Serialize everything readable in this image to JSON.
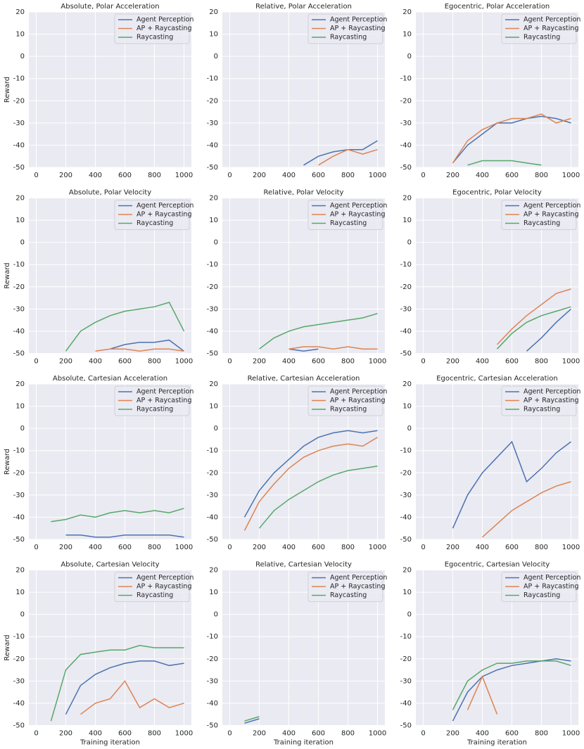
{
  "chart_data": [
    {
      "type": "line",
      "title": "Absolute, Polar Acceleration",
      "ylabel": "Reward",
      "x": [
        0,
        100,
        200,
        300,
        400,
        500,
        600,
        700,
        800,
        900,
        1000
      ],
      "series": [
        {
          "name": "Agent Perception",
          "color": "#4c72b0",
          "values": [
            null,
            null,
            null,
            null,
            null,
            null,
            null,
            null,
            null,
            null,
            null
          ]
        },
        {
          "name": "AP + Raycasting",
          "color": "#dd8452",
          "values": [
            null,
            null,
            null,
            null,
            null,
            null,
            null,
            null,
            null,
            null,
            null
          ]
        },
        {
          "name": "Raycasting",
          "color": "#55a868",
          "values": [
            null,
            null,
            null,
            null,
            null,
            null,
            null,
            null,
            null,
            null,
            null
          ]
        }
      ],
      "xlim": [
        -50,
        1050
      ],
      "ylim": [
        -50,
        20
      ],
      "xticks": [
        0,
        200,
        400,
        600,
        800,
        1000
      ],
      "yticks": [
        -50,
        -40,
        -30,
        -20,
        -10,
        0,
        10,
        20
      ],
      "grid": true,
      "legend": "upper right"
    },
    {
      "type": "line",
      "title": "Relative, Polar Acceleration",
      "x": [
        0,
        100,
        200,
        300,
        400,
        500,
        600,
        700,
        800,
        900,
        1000
      ],
      "series": [
        {
          "name": "Agent Perception",
          "color": "#4c72b0",
          "values": [
            null,
            null,
            null,
            null,
            null,
            -49,
            -45,
            -43,
            -42,
            -42,
            -38
          ]
        },
        {
          "name": "AP + Raycasting",
          "color": "#dd8452",
          "values": [
            null,
            null,
            null,
            null,
            null,
            null,
            -49,
            -45,
            -42,
            -44,
            -42
          ]
        },
        {
          "name": "Raycasting",
          "color": "#55a868",
          "values": [
            null,
            null,
            null,
            null,
            null,
            null,
            null,
            null,
            null,
            null,
            null
          ]
        }
      ],
      "xlim": [
        -50,
        1050
      ],
      "ylim": [
        -50,
        20
      ],
      "xticks": [
        0,
        200,
        400,
        600,
        800,
        1000
      ],
      "yticks": [
        -50,
        -40,
        -30,
        -20,
        -10,
        0,
        10,
        20
      ],
      "grid": true,
      "legend": "upper right"
    },
    {
      "type": "line",
      "title": "Egocentric, Polar Acceleration",
      "x": [
        0,
        100,
        200,
        300,
        400,
        500,
        600,
        700,
        800,
        900,
        1000
      ],
      "series": [
        {
          "name": "Agent Perception",
          "color": "#4c72b0",
          "values": [
            null,
            null,
            -48,
            -40,
            -35,
            -30,
            -30,
            -28,
            -27,
            -28,
            -30
          ]
        },
        {
          "name": "AP + Raycasting",
          "color": "#dd8452",
          "values": [
            null,
            null,
            -48,
            -38,
            -33,
            -30,
            -28,
            -28,
            -26,
            -30,
            -28
          ]
        },
        {
          "name": "Raycasting",
          "color": "#55a868",
          "values": [
            null,
            null,
            null,
            -49,
            -47,
            -47,
            -47,
            -48,
            -49,
            null,
            null
          ]
        }
      ],
      "xlim": [
        -50,
        1050
      ],
      "ylim": [
        -50,
        20
      ],
      "xticks": [
        0,
        200,
        400,
        600,
        800,
        1000
      ],
      "yticks": [
        -50,
        -40,
        -30,
        -20,
        -10,
        0,
        10,
        20
      ],
      "grid": true,
      "legend": "upper right"
    },
    {
      "type": "line",
      "title": "Absolute, Polar Velocity",
      "ylabel": "Reward",
      "x": [
        0,
        100,
        200,
        300,
        400,
        500,
        600,
        700,
        800,
        900,
        1000
      ],
      "series": [
        {
          "name": "Agent Perception",
          "color": "#4c72b0",
          "values": [
            null,
            null,
            null,
            null,
            null,
            -48,
            -46,
            -45,
            -45,
            -44,
            -49
          ]
        },
        {
          "name": "AP + Raycasting",
          "color": "#dd8452",
          "values": [
            null,
            null,
            null,
            null,
            -49,
            -48,
            -48,
            -49,
            -48,
            -48,
            -49
          ]
        },
        {
          "name": "Raycasting",
          "color": "#55a868",
          "values": [
            null,
            null,
            -49,
            -40,
            -36,
            -33,
            -31,
            -30,
            -29,
            -27,
            -40
          ]
        }
      ],
      "xlim": [
        -50,
        1050
      ],
      "ylim": [
        -50,
        20
      ],
      "xticks": [
        0,
        200,
        400,
        600,
        800,
        1000
      ],
      "yticks": [
        -50,
        -40,
        -30,
        -20,
        -10,
        0,
        10,
        20
      ],
      "grid": true,
      "legend": "upper right"
    },
    {
      "type": "line",
      "title": "Relative, Polar Velocity",
      "x": [
        0,
        100,
        200,
        300,
        400,
        500,
        600,
        700,
        800,
        900,
        1000
      ],
      "series": [
        {
          "name": "Agent Perception",
          "color": "#4c72b0",
          "values": [
            null,
            null,
            null,
            null,
            -48,
            -49,
            -48,
            null,
            null,
            null,
            null
          ]
        },
        {
          "name": "AP + Raycasting",
          "color": "#dd8452",
          "values": [
            null,
            null,
            null,
            null,
            -48,
            -47,
            -47,
            -48,
            -47,
            -48,
            -48
          ]
        },
        {
          "name": "Raycasting",
          "color": "#55a868",
          "values": [
            null,
            null,
            -48,
            -43,
            -40,
            -38,
            -37,
            -36,
            -35,
            -34,
            -32
          ]
        }
      ],
      "xlim": [
        -50,
        1050
      ],
      "ylim": [
        -50,
        20
      ],
      "xticks": [
        0,
        200,
        400,
        600,
        800,
        1000
      ],
      "yticks": [
        -50,
        -40,
        -30,
        -20,
        -10,
        0,
        10,
        20
      ],
      "grid": true,
      "legend": "upper right"
    },
    {
      "type": "line",
      "title": "Egocentric, Polar Velocity",
      "x": [
        0,
        100,
        200,
        300,
        400,
        500,
        600,
        700,
        800,
        900,
        1000
      ],
      "series": [
        {
          "name": "Agent Perception",
          "color": "#4c72b0",
          "values": [
            null,
            null,
            null,
            null,
            null,
            null,
            null,
            -49,
            -43,
            -36,
            -30
          ]
        },
        {
          "name": "AP + Raycasting",
          "color": "#dd8452",
          "values": [
            null,
            null,
            null,
            null,
            null,
            -46,
            -39,
            -33,
            -28,
            -23,
            -21
          ]
        },
        {
          "name": "Raycasting",
          "color": "#55a868",
          "values": [
            null,
            null,
            null,
            null,
            null,
            -48,
            -41,
            -36,
            -33,
            -31,
            -29
          ]
        }
      ],
      "xlim": [
        -50,
        1050
      ],
      "ylim": [
        -50,
        20
      ],
      "xticks": [
        0,
        200,
        400,
        600,
        800,
        1000
      ],
      "yticks": [
        -50,
        -40,
        -30,
        -20,
        -10,
        0,
        10,
        20
      ],
      "grid": true,
      "legend": "upper right"
    },
    {
      "type": "line",
      "title": "Absolute, Cartesian Acceleration",
      "ylabel": "Reward",
      "x": [
        0,
        100,
        200,
        300,
        400,
        500,
        600,
        700,
        800,
        900,
        1000
      ],
      "series": [
        {
          "name": "Agent Perception",
          "color": "#4c72b0",
          "values": [
            null,
            null,
            -48,
            -48,
            -49,
            -49,
            -48,
            -48,
            -48,
            -48,
            -49
          ]
        },
        {
          "name": "AP + Raycasting",
          "color": "#dd8452",
          "values": [
            null,
            null,
            null,
            null,
            null,
            null,
            null,
            null,
            null,
            null,
            null
          ]
        },
        {
          "name": "Raycasting",
          "color": "#55a868",
          "values": [
            null,
            -42,
            -41,
            -39,
            -40,
            -38,
            -37,
            -38,
            -37,
            -38,
            -36
          ]
        }
      ],
      "xlim": [
        -50,
        1050
      ],
      "ylim": [
        -50,
        20
      ],
      "xticks": [
        0,
        200,
        400,
        600,
        800,
        1000
      ],
      "yticks": [
        -50,
        -40,
        -30,
        -20,
        -10,
        0,
        10,
        20
      ],
      "grid": true,
      "legend": "upper right"
    },
    {
      "type": "line",
      "title": "Relative, Cartesian Acceleration",
      "x": [
        0,
        100,
        200,
        300,
        400,
        500,
        600,
        700,
        800,
        900,
        1000
      ],
      "series": [
        {
          "name": "Agent Perception",
          "color": "#4c72b0",
          "values": [
            null,
            -40,
            -28,
            -20,
            -14,
            -8,
            -4,
            -2,
            -1,
            -2,
            -1
          ]
        },
        {
          "name": "AP + Raycasting",
          "color": "#dd8452",
          "values": [
            null,
            -46,
            -33,
            -25,
            -18,
            -13,
            -10,
            -8,
            -7,
            -8,
            -4
          ]
        },
        {
          "name": "Raycasting",
          "color": "#55a868",
          "values": [
            null,
            null,
            -45,
            -37,
            -32,
            -28,
            -24,
            -21,
            -19,
            -18,
            -17
          ]
        }
      ],
      "xlim": [
        -50,
        1050
      ],
      "ylim": [
        -50,
        20
      ],
      "xticks": [
        0,
        200,
        400,
        600,
        800,
        1000
      ],
      "yticks": [
        -50,
        -40,
        -30,
        -20,
        -10,
        0,
        10,
        20
      ],
      "grid": true,
      "legend": "upper right"
    },
    {
      "type": "line",
      "title": "Egocentric, Cartesian Acceleration",
      "x": [
        0,
        100,
        200,
        300,
        400,
        500,
        600,
        700,
        800,
        900,
        1000
      ],
      "series": [
        {
          "name": "Agent Perception",
          "color": "#4c72b0",
          "values": [
            null,
            null,
            -45,
            -30,
            -20,
            -13,
            -6,
            -24,
            -18,
            -11,
            -6
          ]
        },
        {
          "name": "AP + Raycasting",
          "color": "#dd8452",
          "values": [
            null,
            null,
            null,
            null,
            -49,
            -43,
            -37,
            -33,
            -29,
            -26,
            -24
          ]
        },
        {
          "name": "Raycasting",
          "color": "#55a868",
          "values": [
            null,
            null,
            null,
            null,
            null,
            null,
            null,
            null,
            null,
            null,
            null
          ]
        }
      ],
      "xlim": [
        -50,
        1050
      ],
      "ylim": [
        -50,
        20
      ],
      "xticks": [
        0,
        200,
        400,
        600,
        800,
        1000
      ],
      "yticks": [
        -50,
        -40,
        -30,
        -20,
        -10,
        0,
        10,
        20
      ],
      "grid": true,
      "legend": "upper right"
    },
    {
      "type": "line",
      "title": "Absolute, Cartesian Velocity",
      "ylabel": "Reward",
      "xlabel": "Training iteration",
      "x": [
        0,
        100,
        200,
        300,
        400,
        500,
        600,
        700,
        800,
        900,
        1000
      ],
      "series": [
        {
          "name": "Agent Perception",
          "color": "#4c72b0",
          "values": [
            null,
            null,
            -45,
            -32,
            -27,
            -24,
            -22,
            -21,
            -21,
            -23,
            -22
          ]
        },
        {
          "name": "AP + Raycasting",
          "color": "#dd8452",
          "values": [
            null,
            null,
            null,
            -45,
            -40,
            -38,
            -30,
            -42,
            -38,
            -42,
            -40
          ]
        },
        {
          "name": "Raycasting",
          "color": "#55a868",
          "values": [
            null,
            -48,
            -25,
            -18,
            -17,
            -16,
            -16,
            -14,
            -15,
            -15,
            -15
          ]
        }
      ],
      "xlim": [
        -50,
        1050
      ],
      "ylim": [
        -50,
        20
      ],
      "xticks": [
        0,
        200,
        400,
        600,
        800,
        1000
      ],
      "yticks": [
        -50,
        -40,
        -30,
        -20,
        -10,
        0,
        10,
        20
      ],
      "grid": true,
      "legend": "upper right"
    },
    {
      "type": "line",
      "title": "Relative, Cartesian Velocity",
      "xlabel": "Training iteration",
      "x": [
        0,
        100,
        200,
        300,
        400,
        500,
        600,
        700,
        800,
        900,
        1000
      ],
      "series": [
        {
          "name": "Agent Perception",
          "color": "#4c72b0",
          "values": [
            null,
            -49,
            -47,
            null,
            null,
            null,
            null,
            null,
            null,
            null,
            null
          ]
        },
        {
          "name": "AP + Raycasting",
          "color": "#dd8452",
          "values": [
            null,
            null,
            null,
            null,
            null,
            null,
            null,
            null,
            null,
            null,
            null
          ]
        },
        {
          "name": "Raycasting",
          "color": "#55a868",
          "values": [
            null,
            -48,
            -46,
            null,
            null,
            null,
            null,
            null,
            null,
            null,
            null
          ]
        }
      ],
      "xlim": [
        -50,
        1050
      ],
      "ylim": [
        -50,
        20
      ],
      "xticks": [
        0,
        200,
        400,
        600,
        800,
        1000
      ],
      "yticks": [
        -50,
        -40,
        -30,
        -20,
        -10,
        0,
        10,
        20
      ],
      "grid": true,
      "legend": "upper right"
    },
    {
      "type": "line",
      "title": "Egocentric, Cartesian Velocity",
      "xlabel": "Training iteration",
      "x": [
        0,
        100,
        200,
        300,
        400,
        500,
        600,
        700,
        800,
        900,
        1000
      ],
      "series": [
        {
          "name": "Agent Perception",
          "color": "#4c72b0",
          "values": [
            null,
            null,
            -48,
            -35,
            -28,
            -25,
            -23,
            -22,
            -21,
            -20,
            -21
          ]
        },
        {
          "name": "AP + Raycasting",
          "color": "#dd8452",
          "values": [
            null,
            null,
            null,
            -43,
            -28,
            -45,
            null,
            null,
            null,
            null,
            null
          ]
        },
        {
          "name": "Raycasting",
          "color": "#55a868",
          "values": [
            null,
            null,
            -43,
            -30,
            -25,
            -22,
            -22,
            -21,
            -21,
            -21,
            -23
          ]
        }
      ],
      "xlim": [
        -50,
        1050
      ],
      "ylim": [
        -50,
        20
      ],
      "xticks": [
        0,
        200,
        400,
        600,
        800,
        1000
      ],
      "yticks": [
        -50,
        -40,
        -30,
        -20,
        -10,
        0,
        10,
        20
      ],
      "grid": true,
      "legend": "upper right"
    }
  ]
}
